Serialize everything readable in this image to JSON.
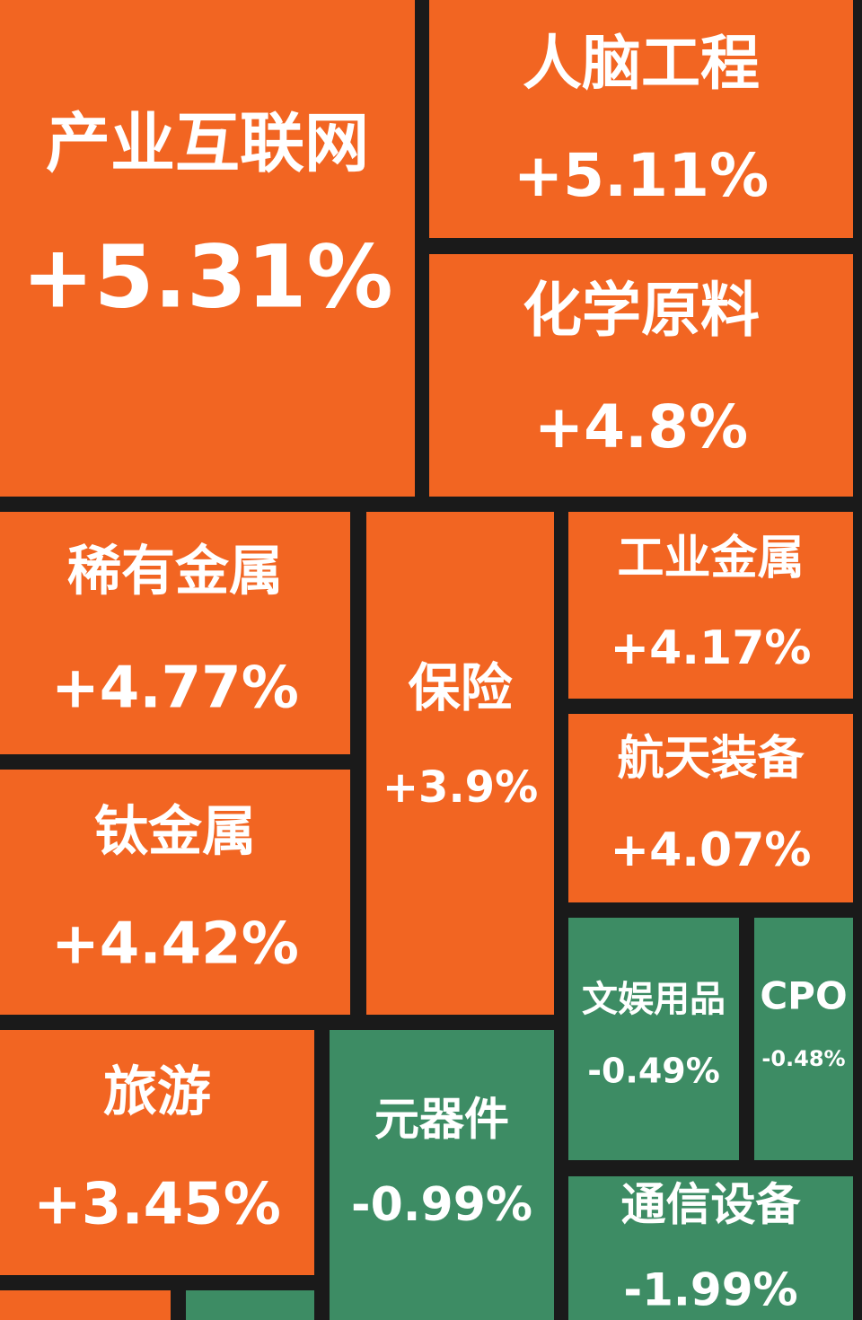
{
  "chart_data": {
    "type": "treemap",
    "categories": [
      "产业互联网",
      "人脑工程",
      "化学原料",
      "稀有金属",
      "保险",
      "工业金属",
      "航天装备",
      "钛金属",
      "文娱用品",
      "CPO",
      "旅游",
      "元器件",
      "通信设备"
    ],
    "values": [
      5.31,
      5.11,
      4.8,
      4.77,
      3.9,
      4.17,
      4.07,
      4.42,
      -0.49,
      -0.48,
      3.45,
      -0.99,
      -1.99
    ],
    "value_labels": [
      "+5.31%",
      "+5.11%",
      "+4.8%",
      "+4.77%",
      "+3.9%",
      "+4.17%",
      "+4.07%",
      "+4.42%",
      "-0.49%",
      "-0.48%",
      "+3.45%",
      "-0.99%",
      "-1.99%"
    ],
    "colors": {
      "up": "#f26522",
      "down": "#3d8c64"
    }
  }
}
